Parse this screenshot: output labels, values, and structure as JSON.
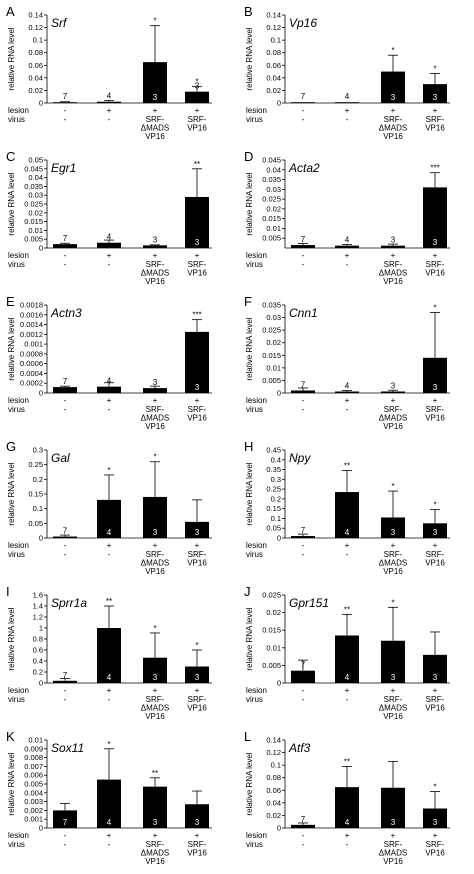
{
  "figure": {
    "ylabel": "relative RNA level",
    "row_labels": [
      "lesion",
      "virus"
    ],
    "lesion_values": [
      "-",
      "+",
      "+",
      "+"
    ],
    "virus_values": [
      "-",
      "-",
      "SRF-\nΔMADS\nVP16",
      "SRF-\nVP16"
    ]
  },
  "chart_data": [
    {
      "type": "bar",
      "panel": "A",
      "title": "Srf",
      "ylabel": "relative RNA level",
      "categories": [
        "lesion - / virus -",
        "lesion + / virus -",
        "lesion + / virus SRF-ΔMADS VP16",
        "lesion + / virus SRF-VP16"
      ],
      "values": [
        0.001,
        0.002,
        0.065,
        0.018
      ],
      "errors": [
        0.001,
        0.002,
        0.058,
        0.008
      ],
      "n": [
        "7",
        "4",
        "3",
        "3"
      ],
      "significance": [
        "",
        "",
        "*",
        "*"
      ],
      "ylim": [
        0,
        0.14
      ],
      "yticks": [
        0,
        0.02,
        0.04,
        0.06,
        0.08,
        0.1,
        0.12,
        0.14
      ],
      "tick_labels": [
        "0",
        "0.02",
        "0.04",
        "0.06",
        "0.08",
        "0.1",
        "0.12",
        "0.14"
      ]
    },
    {
      "type": "bar",
      "panel": "B",
      "title": "Vp16",
      "ylabel": "relative RNA level",
      "categories": [
        "lesion - / virus -",
        "lesion + / virus -",
        "lesion + / virus SRF-ΔMADS VP16",
        "lesion + / virus SRF-VP16"
      ],
      "values": [
        0,
        0,
        0.05,
        0.03
      ],
      "errors": [
        0,
        0,
        0.026,
        0.017
      ],
      "n": [
        "7",
        "4",
        "3",
        "3"
      ],
      "significance": [
        "",
        "",
        "*",
        "*"
      ],
      "ylim": [
        0,
        0.14
      ],
      "yticks": [
        0,
        0.02,
        0.04,
        0.06,
        0.08,
        0.1,
        0.12,
        0.14
      ],
      "tick_labels": [
        "0",
        "0.02",
        "0.04",
        "0.06",
        "0.08",
        "0.1",
        "0.12",
        "0.14"
      ]
    },
    {
      "type": "bar",
      "panel": "C",
      "title": "Egr1",
      "ylabel": "relative RNA level",
      "categories": [
        "lesion - / virus -",
        "lesion + / virus -",
        "lesion + / virus SRF-ΔMADS VP16",
        "lesion + / virus SRF-VP16"
      ],
      "values": [
        0.0022,
        0.003,
        0.0015,
        0.029
      ],
      "errors": [
        0.0005,
        0.0015,
        0.0003,
        0.016
      ],
      "n": [
        "7",
        "4",
        "3",
        "3"
      ],
      "significance": [
        "",
        "",
        "",
        "**"
      ],
      "ylim": [
        0,
        0.05
      ],
      "yticks": [
        0,
        0.005,
        0.01,
        0.015,
        0.02,
        0.025,
        0.03,
        0.035,
        0.04,
        0.045,
        0.05
      ],
      "tick_labels": [
        "0",
        "0.005",
        "0.01",
        "0.015",
        "0.02",
        "0.025",
        "0.03",
        "0.035",
        "0.04",
        "0.045",
        "0.05"
      ]
    },
    {
      "type": "bar",
      "panel": "D",
      "title": "Acta2",
      "ylabel": "relative RNA level",
      "categories": [
        "lesion - / virus -",
        "lesion + / virus -",
        "lesion + / virus SRF-ΔMADS VP16",
        "lesion + / virus SRF-VP16"
      ],
      "values": [
        0.0015,
        0.0012,
        0.0012,
        0.031
      ],
      "errors": [
        0.0008,
        0.0006,
        0.0008,
        0.0075
      ],
      "n": [
        "7",
        "4",
        "3",
        "3"
      ],
      "significance": [
        "",
        "",
        "",
        "***"
      ],
      "ylim": [
        0,
        0.045
      ],
      "yticks": [
        0.005,
        0.01,
        0.015,
        0.02,
        0.025,
        0.03,
        0.035,
        0.04,
        0.045
      ],
      "tick_labels": [
        "0.005",
        "0.01",
        "0.015",
        "0.02",
        "0.025",
        "0.03",
        "0.035",
        "0.04",
        "0.045"
      ]
    },
    {
      "type": "bar",
      "panel": "E",
      "title": "Actn3",
      "ylabel": "relative RNA level",
      "categories": [
        "lesion - / virus -",
        "lesion + / virus -",
        "lesion + / virus SRF-ΔMADS VP16",
        "lesion + / virus SRF-VP16"
      ],
      "values": [
        0.00012,
        0.00013,
        0.0001,
        0.00125
      ],
      "errors": [
        2e-05,
        8e-05,
        4e-05,
        0.00025
      ],
      "n": [
        "7",
        "4",
        "3",
        "3"
      ],
      "significance": [
        "",
        "",
        "",
        "***"
      ],
      "ylim": [
        0,
        0.0018
      ],
      "yticks": [
        0,
        0.0002,
        0.0004,
        0.0006,
        0.0008,
        0.001,
        0.0012,
        0.0014,
        0.0016,
        0.0018
      ],
      "tick_labels": [
        "0",
        "0.0002",
        "0.0004",
        "0.0006",
        "0.0008",
        "0.001",
        "0.0012",
        "0.0014",
        "0.0016",
        "0.0018"
      ]
    },
    {
      "type": "bar",
      "panel": "F",
      "title": "Cnn1",
      "ylabel": "relative RNA level",
      "categories": [
        "lesion - / virus -",
        "lesion + / virus -",
        "lesion + / virus SRF-ΔMADS VP16",
        "lesion + / virus SRF-VP16"
      ],
      "values": [
        0.001,
        0.0006,
        0.0006,
        0.014
      ],
      "errors": [
        0.001,
        0.0004,
        0.0005,
        0.018
      ],
      "n": [
        "7",
        "4",
        "3",
        "3"
      ],
      "significance": [
        "",
        "",
        "",
        "*"
      ],
      "ylim": [
        0,
        0.035
      ],
      "yticks": [
        0,
        0.005,
        0.01,
        0.015,
        0.02,
        0.025,
        0.03,
        0.035
      ],
      "tick_labels": [
        "0",
        "0.005",
        "0.01",
        "0.015",
        "0.02",
        "0.025",
        "0.03",
        "0.035"
      ]
    },
    {
      "type": "bar",
      "panel": "G",
      "title": "Gal",
      "ylabel": "relative RNA level",
      "categories": [
        "lesion - / virus -",
        "lesion + / virus -",
        "lesion + / virus SRF-ΔMADS VP16",
        "lesion + / virus SRF-VP16"
      ],
      "values": [
        0.005,
        0.13,
        0.14,
        0.055
      ],
      "errors": [
        0.005,
        0.085,
        0.12,
        0.075
      ],
      "n": [
        "7",
        "4",
        "3",
        "3"
      ],
      "significance": [
        "",
        "*",
        "*",
        ""
      ],
      "ylim": [
        0,
        0.3
      ],
      "yticks": [
        0,
        0.05,
        0.1,
        0.15,
        0.2,
        0.25,
        0.3
      ],
      "tick_labels": [
        "0",
        "0.05",
        "0.1",
        "0.15",
        "0.2",
        "0.25",
        "0.3"
      ]
    },
    {
      "type": "bar",
      "panel": "H",
      "title": "Npy",
      "ylabel": "relative RNA level",
      "categories": [
        "lesion - / virus -",
        "lesion + / virus -",
        "lesion + / virus SRF-ΔMADS VP16",
        "lesion + / virus SRF-VP16"
      ],
      "values": [
        0.01,
        0.235,
        0.105,
        0.075
      ],
      "errors": [
        0.01,
        0.11,
        0.135,
        0.07
      ],
      "n": [
        "7",
        "4",
        "3",
        "3"
      ],
      "significance": [
        "",
        "**",
        "*",
        "*"
      ],
      "ylim": [
        0,
        0.45
      ],
      "yticks": [
        0,
        0.05,
        0.1,
        0.15,
        0.2,
        0.25,
        0.3,
        0.35,
        0.4,
        0.45
      ],
      "tick_labels": [
        "0",
        "0.05",
        "0.1",
        "0.15",
        "0.2",
        "0.25",
        "0.3",
        "0.35",
        "0.4",
        "0.45"
      ]
    },
    {
      "type": "bar",
      "panel": "I",
      "title": "Sprr1a",
      "ylabel": "relative RNA level",
      "categories": [
        "lesion - / virus -",
        "lesion + / virus -",
        "lesion + / virus SRF-ΔMADS VP16",
        "lesion + / virus SRF-VP16"
      ],
      "values": [
        0.04,
        1.0,
        0.46,
        0.3
      ],
      "errors": [
        0.04,
        0.4,
        0.45,
        0.3
      ],
      "n": [
        "7",
        "4",
        "3",
        "3"
      ],
      "significance": [
        "",
        "**",
        "*",
        "*"
      ],
      "ylim": [
        0,
        1.6
      ],
      "yticks": [
        0,
        0.2,
        0.4,
        0.6,
        0.8,
        1.0,
        1.2,
        1.4,
        1.6
      ],
      "tick_labels": [
        "0",
        "0.2",
        "0.4",
        "0.6",
        "0.8",
        "1",
        "1.2",
        "1.4",
        "1.6"
      ]
    },
    {
      "type": "bar",
      "panel": "J",
      "title": "Gpr151",
      "ylabel": "relative RNA level",
      "categories": [
        "lesion - / virus -",
        "lesion + / virus -",
        "lesion + / virus SRF-ΔMADS VP16",
        "lesion + / virus SRF-VP16"
      ],
      "values": [
        0.0035,
        0.0135,
        0.012,
        0.008
      ],
      "errors": [
        0.003,
        0.006,
        0.0095,
        0.0065
      ],
      "n": [
        "7",
        "4",
        "3",
        "3"
      ],
      "significance": [
        "",
        "**",
        "*",
        ""
      ],
      "ylim": [
        0,
        0.025
      ],
      "yticks": [
        0,
        0.005,
        0.01,
        0.015,
        0.02,
        0.025
      ],
      "tick_labels": [
        "0",
        "0.005",
        "0.01",
        "0.015",
        "0.02",
        "0.025"
      ]
    },
    {
      "type": "bar",
      "panel": "K",
      "title": "Sox11",
      "ylabel": "relative RNA level",
      "categories": [
        "lesion - / virus -",
        "lesion + / virus -",
        "lesion + / virus SRF-ΔMADS VP16",
        "lesion + / virus SRF-VP16"
      ],
      "values": [
        0.002,
        0.0055,
        0.0047,
        0.0027
      ],
      "errors": [
        0.0008,
        0.0035,
        0.001,
        0.0015
      ],
      "n": [
        "7",
        "4",
        "3",
        "3"
      ],
      "significance": [
        "",
        "*",
        "**",
        ""
      ],
      "ylim": [
        0,
        0.01
      ],
      "yticks": [
        0,
        0.001,
        0.002,
        0.003,
        0.004,
        0.005,
        0.006,
        0.007,
        0.008,
        0.009,
        0.01
      ],
      "tick_labels": [
        "0",
        "0.001",
        "0.002",
        "0.003",
        "0.004",
        "0.005",
        "0.006",
        "0.007",
        "0.008",
        "0.009",
        "0.01"
      ]
    },
    {
      "type": "bar",
      "panel": "L",
      "title": "Atf3",
      "ylabel": "relative RNA level",
      "categories": [
        "lesion - / virus -",
        "lesion + / virus -",
        "lesion + / virus SRF-ΔMADS VP16",
        "lesion + / virus SRF-VP16"
      ],
      "values": [
        0.005,
        0.065,
        0.064,
        0.031
      ],
      "errors": [
        0.003,
        0.033,
        0.042,
        0.027
      ],
      "n": [
        "7",
        "4",
        "3",
        "3"
      ],
      "significance": [
        "",
        "**",
        "",
        "*"
      ],
      "ylim": [
        0,
        0.14
      ],
      "yticks": [
        0,
        0.02,
        0.04,
        0.06,
        0.08,
        0.1,
        0.12,
        0.14
      ],
      "tick_labels": [
        "0",
        "0.02",
        "0.04",
        "0.06",
        "0.08",
        "0.1",
        "0.12",
        "0.14"
      ]
    }
  ]
}
